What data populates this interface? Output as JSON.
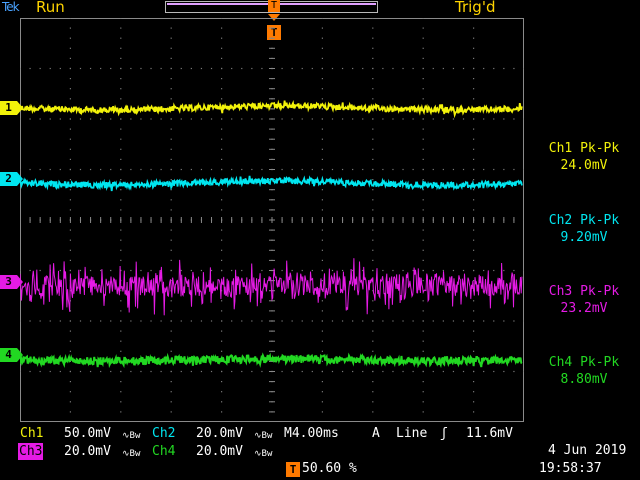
{
  "header": {
    "brand": "Tek",
    "run_state": "Run",
    "trigger_state": "Trig'd",
    "trigger_position_marker": "T",
    "trigger_marker": "T"
  },
  "channels": [
    {
      "id": "1",
      "marker": "1",
      "color": "#f2f20a"
    },
    {
      "id": "2",
      "marker": "2",
      "color": "#00e6f0"
    },
    {
      "id": "3",
      "marker": "3",
      "color": "#e51be5"
    },
    {
      "id": "4",
      "marker": "4",
      "color": "#22d822"
    }
  ],
  "measurements": [
    {
      "label": "Ch1 Pk-Pk",
      "value": "24.0mV",
      "color": "#f2f20a"
    },
    {
      "label": "Ch2 Pk-Pk",
      "value": "9.20mV",
      "color": "#00e6f0"
    },
    {
      "label": "Ch3 Pk-Pk",
      "value": "23.2mV",
      "color": "#e51be5"
    },
    {
      "label": "Ch4 Pk-Pk",
      "value": "8.80mV",
      "color": "#22d822"
    }
  ],
  "status": {
    "ch1_label": "Ch1",
    "ch1_scale": "50.0mV",
    "ch2_label": "Ch2",
    "ch2_scale": "20.0mV",
    "ch3_label": "Ch3",
    "ch3_scale": "20.0mV",
    "ch4_label": "Ch4",
    "ch4_scale": "20.0mV",
    "bw_symbol": "∿",
    "bw_suffix": "B",
    "bw_limit_symbol": "∿Bw",
    "timebase": "M4.00ms",
    "trigger_source_label": "A",
    "trigger_source": "Line",
    "trigger_slope_symbol": "ʃ",
    "trigger_level": "11.6mV",
    "trigger_marker": "T",
    "trigger_position_percent": "50.60 %",
    "date": "4 Jun  2019",
    "time": "19:58:37"
  }
}
